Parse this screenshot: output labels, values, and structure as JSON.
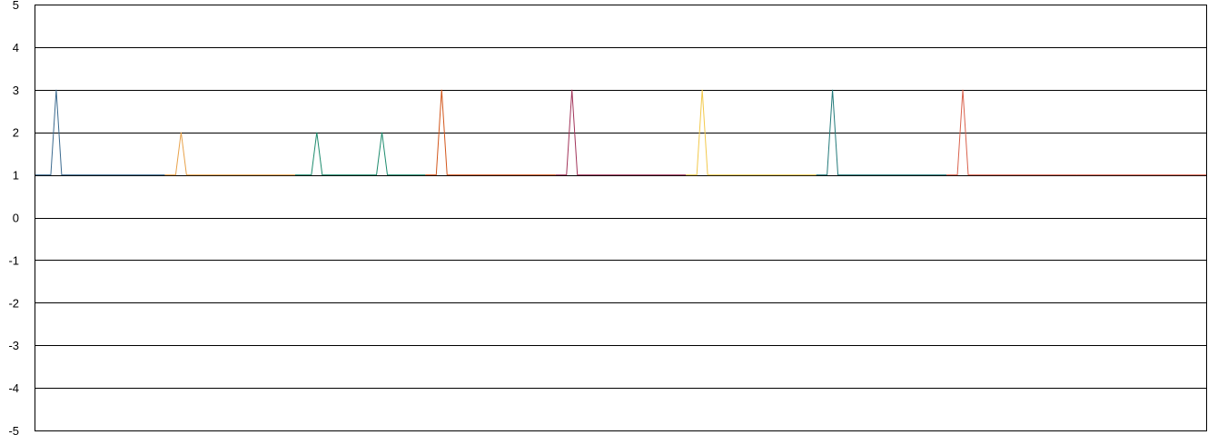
{
  "chart_data": {
    "type": "line",
    "title": "",
    "xlabel": "",
    "ylabel": "",
    "ylim": [
      -5,
      5
    ],
    "yticks": [
      "5",
      "4",
      "3",
      "2",
      "1",
      "0",
      "-1",
      "-2",
      "-3",
      "-4",
      "-5"
    ],
    "grid": true,
    "legend": "none",
    "x_count": 216,
    "series": [
      {
        "color": "#3b6a8f",
        "x": [
          0,
          3,
          4,
          5,
          24
        ],
        "y": [
          1,
          1,
          3,
          1,
          1
        ]
      },
      {
        "color": "#e8a24b",
        "x": [
          24,
          26,
          27,
          28,
          48
        ],
        "y": [
          1,
          1,
          2,
          1,
          1
        ]
      },
      {
        "color": "#1e8c6e",
        "x": [
          48,
          51,
          52,
          53,
          63,
          64,
          65,
          72
        ],
        "y": [
          1,
          1,
          2,
          1,
          1,
          2,
          1,
          1
        ]
      },
      {
        "color": "#d2561b",
        "x": [
          72,
          74,
          75,
          76,
          96
        ],
        "y": [
          1,
          1,
          3,
          1,
          1
        ]
      },
      {
        "color": "#a2345a",
        "x": [
          96,
          98,
          99,
          100,
          120
        ],
        "y": [
          1,
          1,
          3,
          1,
          1
        ]
      },
      {
        "color": "#f2c94c",
        "x": [
          120,
          122,
          123,
          124,
          144
        ],
        "y": [
          1,
          1,
          3,
          1,
          1
        ]
      },
      {
        "color": "#237a7a",
        "x": [
          144,
          146,
          147,
          148,
          168
        ],
        "y": [
          1,
          1,
          3,
          1,
          1
        ]
      },
      {
        "color": "#d9614c",
        "x": [
          168,
          170,
          171,
          172,
          192
        ],
        "y": [
          1,
          1,
          3,
          1,
          1
        ]
      },
      {
        "color": "#d9614c",
        "x": [
          192,
          216
        ],
        "y": [
          1,
          1
        ]
      }
    ]
  }
}
